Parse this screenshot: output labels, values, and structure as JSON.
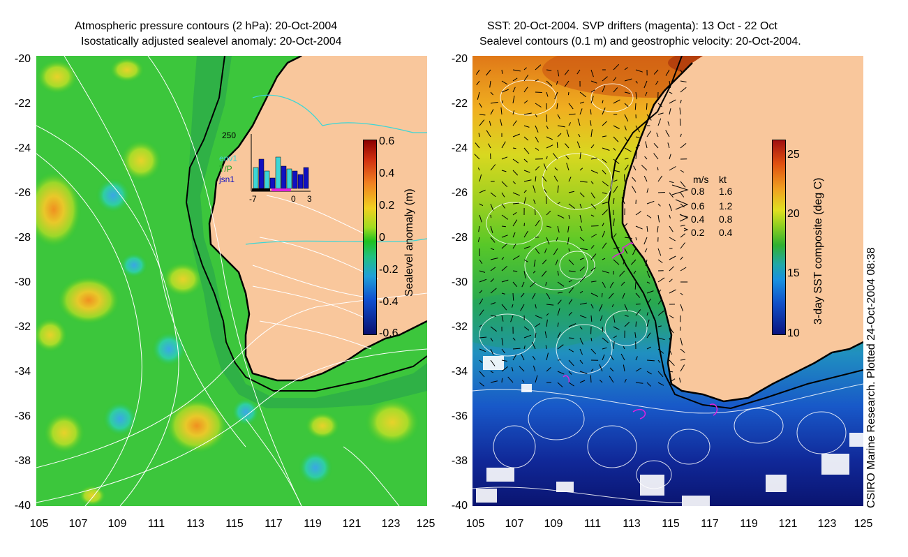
{
  "left_panel": {
    "title_line1": "Atmospheric pressure contours (2 hPa): 20-Oct-2004",
    "title_line2": "Isostatically adjusted sealevel anomaly: 20-Oct-2004",
    "colorbar_label": "Sealevel anomaly (m)",
    "colorbar_ticks": [
      "0.6",
      "0.4",
      "0.2",
      "0",
      "-0.2",
      "-0.4",
      "-0.6"
    ],
    "inset": {
      "ymax_label": "250",
      "x_ticks": [
        "-7",
        "0",
        "3"
      ],
      "legend": [
        "env1",
        "T/P",
        "jsn1"
      ],
      "legend_colors": [
        "#3cd6d6",
        "#1fa21f",
        "#1010c0"
      ]
    }
  },
  "right_panel": {
    "title_line1": "SST: 20-Oct-2004. SVP drifters (magenta): 13 Oct - 22 Oct",
    "title_line2": "Sealevel contours (0.1 m) and geostrophic velocity: 20-Oct-2004.",
    "colorbar_label": "3-day SST composite (deg C)",
    "colorbar_ticks": [
      "25",
      "20",
      "15",
      "10"
    ],
    "velocity_legend": {
      "header_ms": "m/s",
      "header_kt": "kt",
      "rows": [
        {
          "ms": "0.8",
          "kt": "1.6"
        },
        {
          "ms": "0.6",
          "kt": "1.2"
        },
        {
          "ms": "0.4",
          "kt": "0.8"
        },
        {
          "ms": "0.2",
          "kt": "0.4"
        }
      ]
    }
  },
  "axes": {
    "x_ticks": [
      "105",
      "107",
      "109",
      "111",
      "113",
      "115",
      "117",
      "119",
      "121",
      "123",
      "125"
    ],
    "y_ticks": [
      "-20",
      "-22",
      "-24",
      "-26",
      "-28",
      "-30",
      "-32",
      "-34",
      "-36",
      "-38",
      "-40"
    ]
  },
  "credit": "CSIRO Marine Research. Plotted 24-Oct-2004 08:38",
  "colors": {
    "land": "#f9c79c",
    "ocean_anomaly_base": "#2fc62f",
    "coast": "#000000"
  }
}
